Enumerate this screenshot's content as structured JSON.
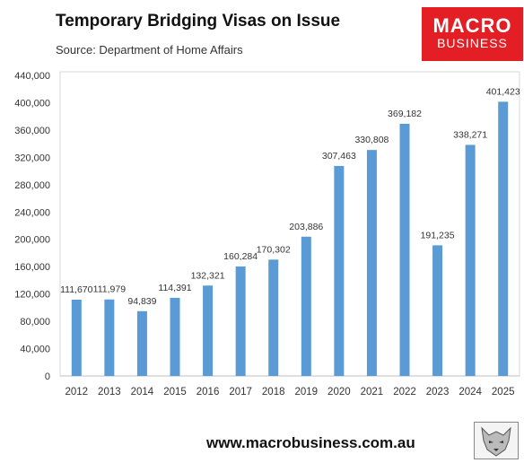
{
  "header": {
    "title": "Temporary Bridging Visas on Issue",
    "source": "Source: Department of Home Affairs"
  },
  "logo": {
    "line1": "MACRO",
    "line2": "BUSINESS",
    "color": "#e31e24"
  },
  "footer": {
    "website": "www.macrobusiness.com.au",
    "mascot_icon": "wolf-head-icon"
  },
  "chart_data": {
    "type": "bar",
    "categories": [
      "2012",
      "2013",
      "2014",
      "2015",
      "2016",
      "2017",
      "2018",
      "2019",
      "2020",
      "2021",
      "2022",
      "2023",
      "2024",
      "2025"
    ],
    "values": [
      111670,
      111979,
      94839,
      114391,
      132321,
      160284,
      170302,
      203886,
      307463,
      330808,
      369182,
      191235,
      338271,
      401423
    ],
    "data_labels": [
      "111,670",
      "111,979",
      "94,839",
      "114,391",
      "132,321",
      "160,284",
      "170,302",
      "203,886",
      "307,463",
      "330,808",
      "369,182",
      "191,235",
      "338,271",
      "401,423"
    ],
    "yticks": [
      0,
      40000,
      80000,
      120000,
      160000,
      200000,
      240000,
      280000,
      320000,
      360000,
      400000,
      440000
    ],
    "ytick_labels": [
      "0",
      "40,000",
      "80,000",
      "120,000",
      "160,000",
      "200,000",
      "240,000",
      "280,000",
      "320,000",
      "360,000",
      "400,000",
      "440,000"
    ],
    "ylim": [
      0,
      440000
    ],
    "title": "Temporary Bridging Visas on Issue",
    "xlabel": "",
    "ylabel": "",
    "grid": false,
    "legend": "none",
    "bar_color": "#5b9bd5"
  }
}
